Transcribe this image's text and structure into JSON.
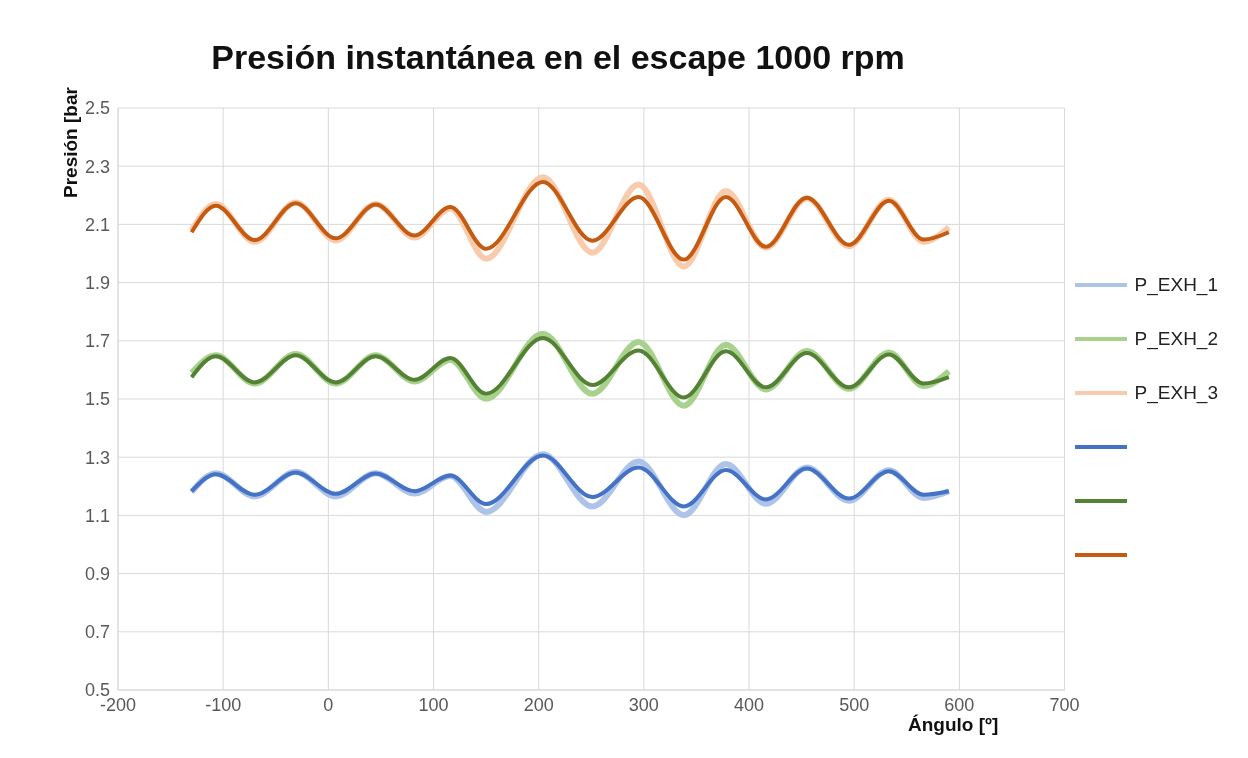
{
  "chart_data": {
    "type": "line",
    "title": "Presión instantánea en el escape 1000 rpm",
    "xlabel": "Ángulo [º]",
    "ylabel": "Presión [bar",
    "xlim": [
      -200,
      700
    ],
    "xticks": [
      -200,
      -100,
      0,
      100,
      200,
      300,
      400,
      500,
      600,
      700
    ],
    "ylim": [
      0.5,
      2.5
    ],
    "yticks": [
      0.5,
      0.7,
      0.9,
      1.1,
      1.3,
      1.5,
      1.7,
      1.9,
      2.1,
      2.3,
      2.5
    ],
    "grid": true,
    "legend": "right",
    "marker": "none",
    "line_style": "solid",
    "series": [
      {
        "name": "P_EXH_1",
        "color": "#aec3e8",
        "x": [
          -130,
          -107,
          -70,
          -31,
          7,
          45,
          82,
          116,
          150,
          204,
          251,
          295,
          338,
          378,
          416,
          455,
          495,
          533,
          566,
          590
        ],
        "values": [
          1.18,
          1.245,
          1.165,
          1.25,
          1.165,
          1.245,
          1.175,
          1.235,
          1.112,
          1.31,
          1.131,
          1.285,
          1.101,
          1.277,
          1.14,
          1.265,
          1.15,
          1.255,
          1.16,
          1.183
        ]
      },
      {
        "name": "P_EXH_2",
        "color": "#a9d18e",
        "x": [
          -130,
          -107,
          -70,
          -31,
          7,
          45,
          82,
          116,
          150,
          204,
          251,
          295,
          338,
          378,
          416,
          455,
          495,
          533,
          566,
          590
        ],
        "values": [
          1.59,
          1.65,
          1.553,
          1.655,
          1.553,
          1.65,
          1.56,
          1.635,
          1.501,
          1.724,
          1.518,
          1.696,
          1.477,
          1.686,
          1.533,
          1.665,
          1.535,
          1.66,
          1.545,
          1.595
        ]
      },
      {
        "name": "P_EXH_3",
        "color": "#f8cbad",
        "x": [
          -130,
          -107,
          -70,
          -31,
          7,
          45,
          82,
          116,
          150,
          204,
          251,
          295,
          338,
          378,
          416,
          455,
          495,
          533,
          566,
          590
        ],
        "values": [
          2.08,
          2.17,
          2.04,
          2.175,
          2.045,
          2.17,
          2.055,
          2.155,
          1.982,
          2.262,
          2.003,
          2.237,
          1.955,
          2.215,
          2.02,
          2.19,
          2.025,
          2.185,
          2.04,
          2.09
        ]
      },
      {
        "color": "#4472c4",
        "x": [
          -130,
          -107,
          -70,
          -31,
          7,
          45,
          82,
          116,
          150,
          204,
          251,
          295,
          338,
          378,
          416,
          455,
          495,
          533,
          566,
          590
        ],
        "values": [
          1.183,
          1.241,
          1.171,
          1.247,
          1.174,
          1.244,
          1.183,
          1.237,
          1.139,
          1.306,
          1.163,
          1.265,
          1.131,
          1.256,
          1.155,
          1.261,
          1.158,
          1.252,
          1.171,
          1.183
        ]
      },
      {
        "color": "#548235",
        "x": [
          -130,
          -107,
          -70,
          -31,
          7,
          45,
          82,
          116,
          150,
          204,
          251,
          295,
          338,
          378,
          416,
          455,
          495,
          533,
          566,
          590
        ],
        "values": [
          1.575,
          1.647,
          1.557,
          1.65,
          1.557,
          1.647,
          1.566,
          1.641,
          1.518,
          1.71,
          1.548,
          1.667,
          1.505,
          1.664,
          1.54,
          1.658,
          1.54,
          1.653,
          1.553,
          1.575
        ]
      },
      {
        "color": "#c55a11",
        "x": [
          -130,
          -107,
          -70,
          -31,
          7,
          45,
          82,
          116,
          150,
          204,
          251,
          295,
          338,
          378,
          416,
          455,
          495,
          533,
          566,
          590
        ],
        "values": [
          2.073,
          2.164,
          2.046,
          2.173,
          2.052,
          2.168,
          2.062,
          2.16,
          2.016,
          2.246,
          2.044,
          2.194,
          1.979,
          2.194,
          2.023,
          2.192,
          2.03,
          2.181,
          2.048,
          2.073
        ]
      }
    ]
  }
}
